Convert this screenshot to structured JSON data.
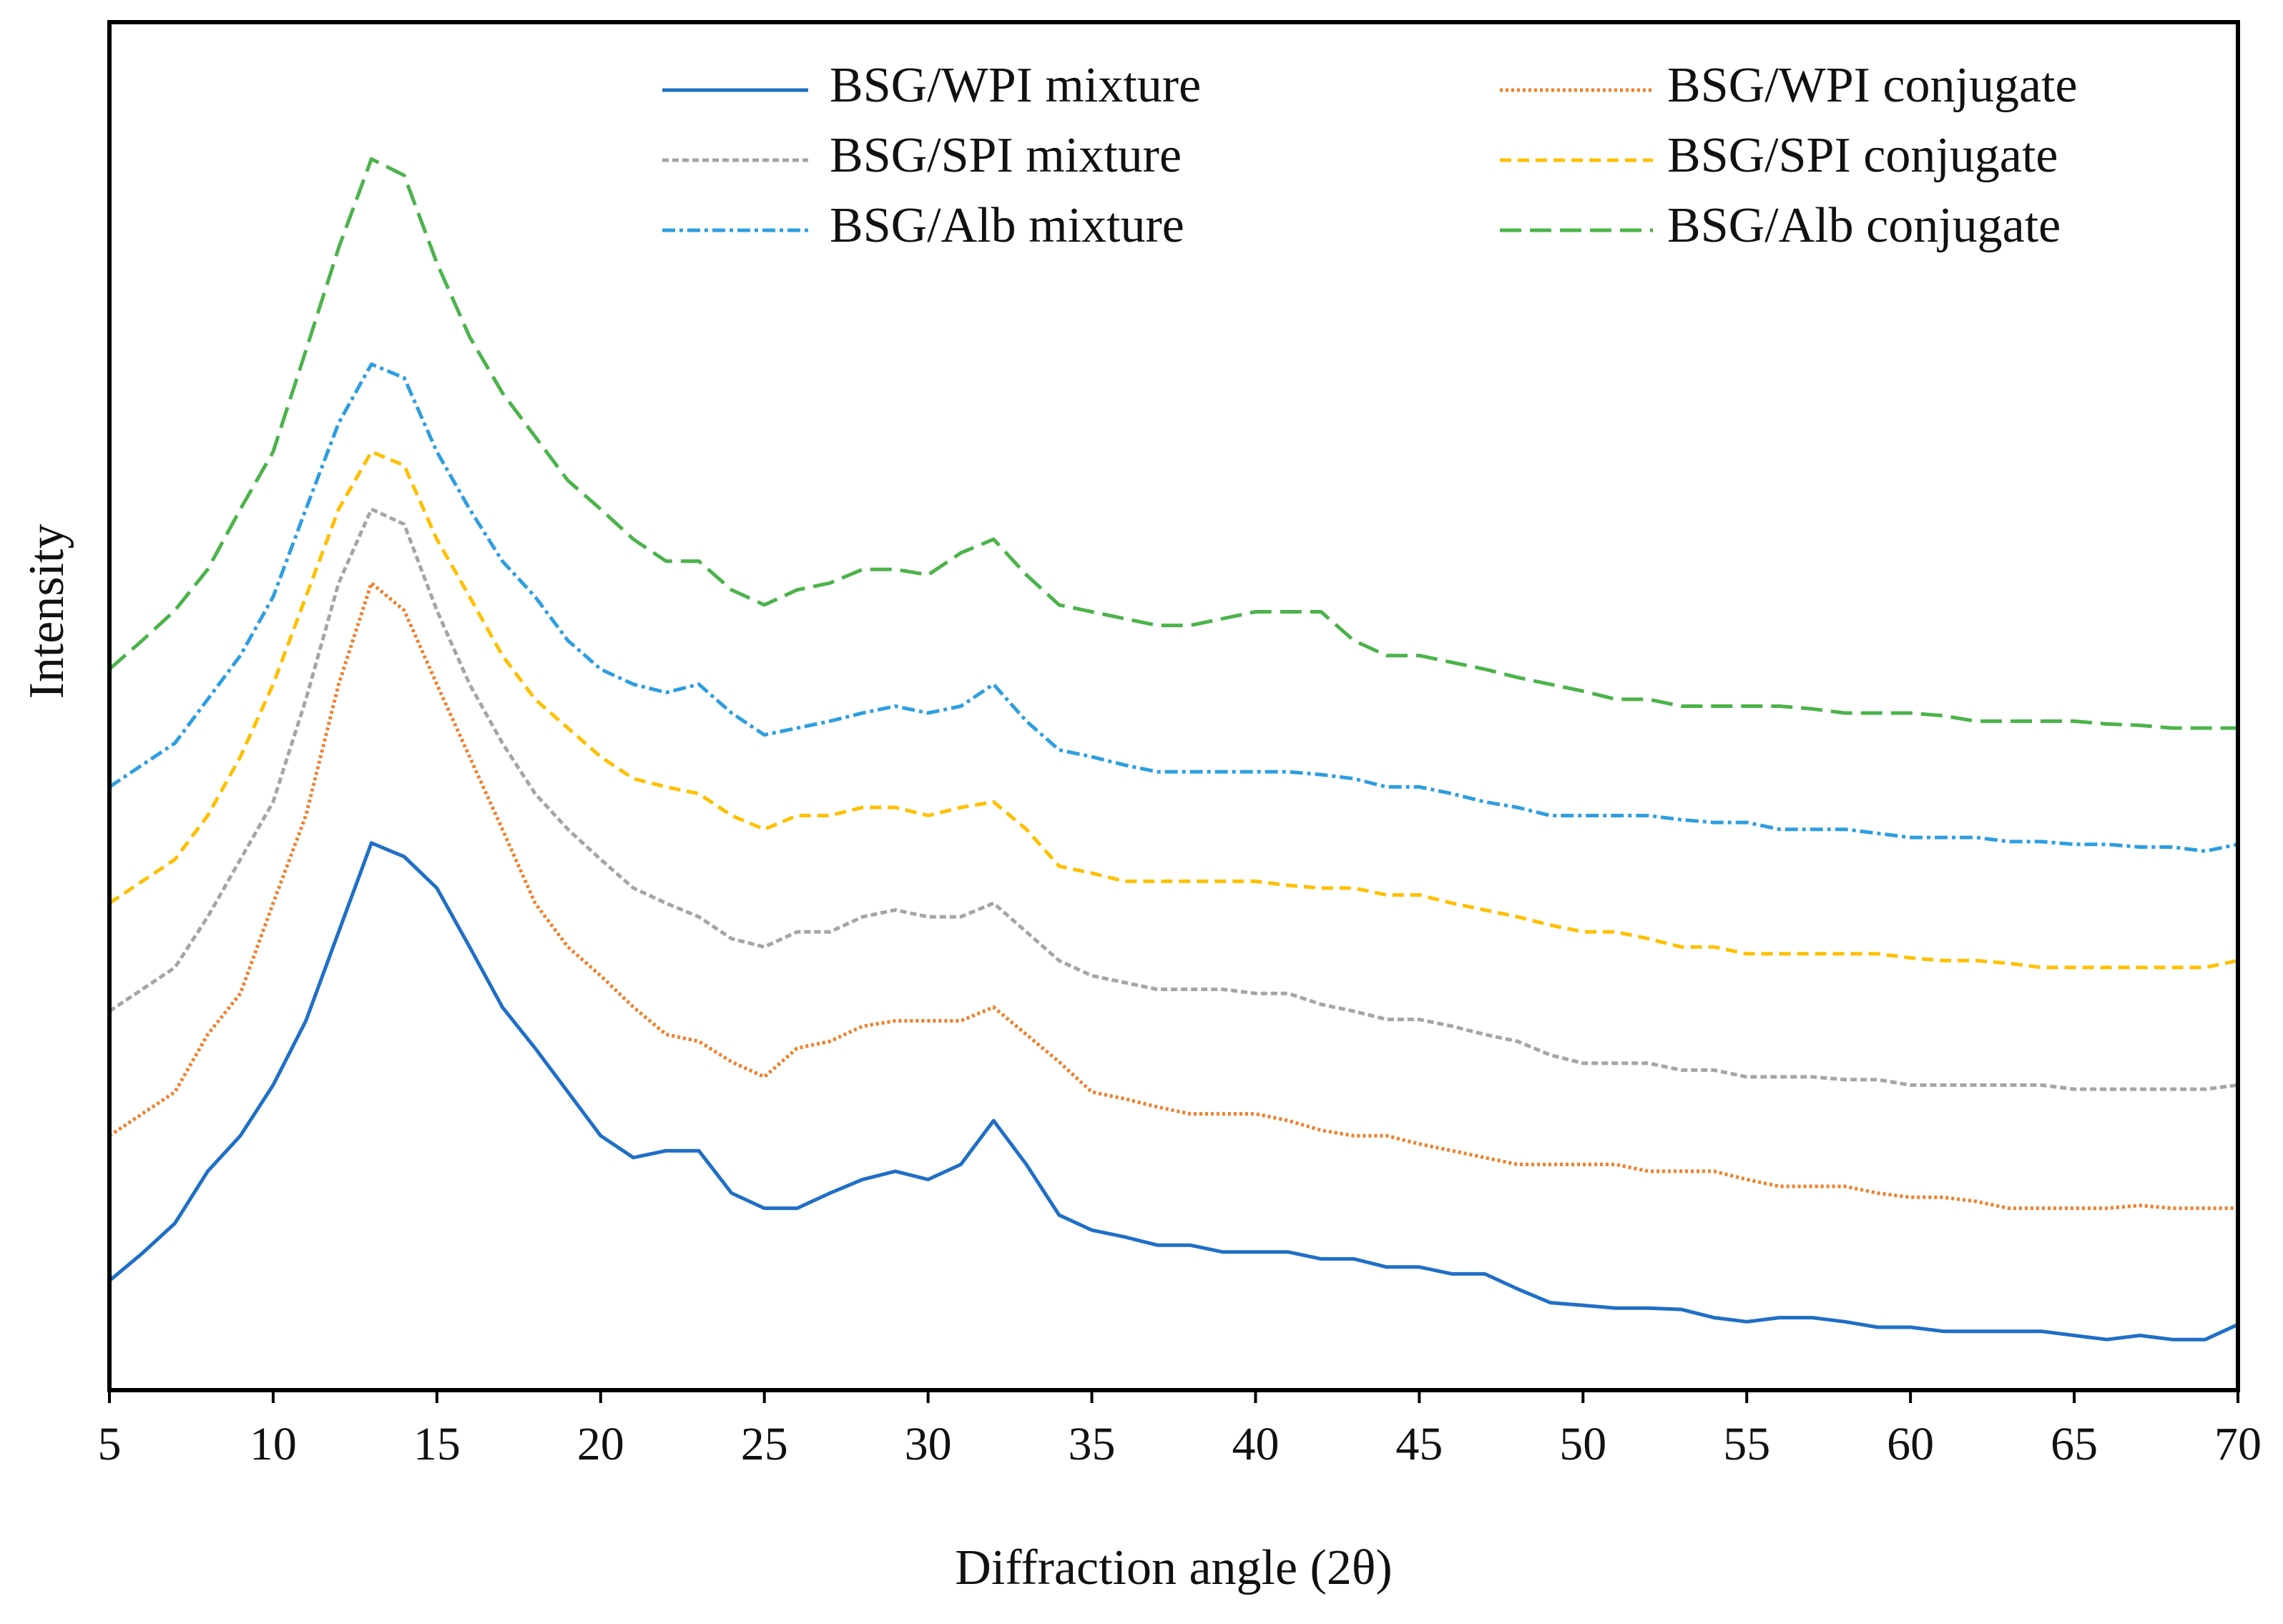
{
  "chart_data": {
    "type": "line",
    "xlabel": "Diffraction angle (2θ)",
    "ylabel": "Intensity",
    "xlim": [
      5,
      70
    ],
    "xticks": [
      5,
      10,
      15,
      20,
      25,
      30,
      35,
      40,
      45,
      50,
      55,
      60,
      65,
      70
    ],
    "ylim": [
      0,
      100
    ],
    "legend": "top-right",
    "x": [
      5,
      6,
      7,
      8,
      9,
      10,
      11,
      12,
      13,
      14,
      15,
      16,
      17,
      18,
      19,
      20,
      21,
      22,
      23,
      24,
      25,
      26,
      27,
      28,
      29,
      30,
      31,
      32,
      33,
      34,
      35,
      36,
      37,
      38,
      39,
      40,
      41,
      42,
      43,
      44,
      45,
      46,
      47,
      48,
      49,
      50,
      51,
      52,
      53,
      54,
      55,
      56,
      57,
      58,
      59,
      60,
      61,
      62,
      63,
      64,
      65,
      66,
      67,
      68,
      69,
      70
    ],
    "series": [
      {
        "name": "BSG/WPI mixture",
        "color": "#1f6fc6",
        "linestyle": "solid",
        "values": [
          8,
          10,
          12.2,
          16,
          18.6,
          22.3,
          27,
          33.5,
          40,
          39,
          36.7,
          32.4,
          28,
          25,
          21.8,
          18.6,
          17,
          17.5,
          17.5,
          14.4,
          13.3,
          13.3,
          14.4,
          15.4,
          16,
          15.4,
          16.5,
          19.7,
          16.5,
          12.8,
          11.7,
          11.2,
          10.6,
          10.6,
          10.1,
          10.1,
          10.1,
          9.6,
          9.6,
          9,
          9,
          8.5,
          8.5,
          7.4,
          6.4,
          6.2,
          6,
          6,
          5.9,
          5.3,
          5,
          5.3,
          5.3,
          5,
          4.6,
          4.6,
          4.3,
          4.3,
          4.3,
          4.3,
          4,
          3.7,
          4,
          3.7,
          3.7,
          4.8
        ]
      },
      {
        "name": "BSG/WPI conjugate",
        "color": "#f07f2a",
        "linestyle": "dotted",
        "values": [
          18.6,
          20.2,
          21.8,
          26,
          29,
          35.6,
          42,
          51.6,
          59,
          57,
          51.6,
          46.3,
          41,
          35.6,
          32.4,
          30.3,
          28,
          26,
          25.5,
          24,
          22.9,
          25,
          25.5,
          26.6,
          27,
          27,
          27,
          28,
          26,
          24,
          21.8,
          21.3,
          20.7,
          20.2,
          20.2,
          20.2,
          19.7,
          19,
          18.6,
          18.6,
          18,
          17.5,
          17,
          16.5,
          16.5,
          16.5,
          16.5,
          16,
          16,
          16,
          15.4,
          14.9,
          14.9,
          14.9,
          14.4,
          14.1,
          14.1,
          13.8,
          13.3,
          13.3,
          13.3,
          13.3,
          13.5,
          13.3,
          13.3,
          13.3
        ]
      },
      {
        "name": "BSG/SPI mixture",
        "color": "#a5a5a5",
        "linestyle": "short-dash",
        "values": [
          27.7,
          29.3,
          30.9,
          34.6,
          38.8,
          43,
          50.5,
          59,
          64.4,
          63.3,
          57,
          51.6,
          47.3,
          43.6,
          41,
          38.8,
          36.7,
          35.6,
          34.6,
          33,
          32.4,
          33.5,
          33.5,
          34.6,
          35.1,
          34.6,
          34.6,
          35.6,
          33.5,
          31.4,
          30.3,
          29.8,
          29.3,
          29.3,
          29.3,
          29,
          29,
          28.2,
          27.7,
          27.1,
          27.1,
          26.6,
          26,
          25.5,
          24.5,
          23.9,
          23.9,
          23.9,
          23.4,
          23.4,
          22.9,
          22.9,
          22.9,
          22.7,
          22.7,
          22.3,
          22.3,
          22.3,
          22.3,
          22.3,
          22,
          22,
          22,
          22,
          22,
          22.3
        ]
      },
      {
        "name": "BSG/SPI conjugate",
        "color": "#ffc000",
        "linestyle": "dash",
        "values": [
          35.6,
          37.2,
          38.8,
          42,
          46.3,
          51.6,
          58,
          64.4,
          68.6,
          67.6,
          62.2,
          58,
          53.7,
          50.5,
          48.4,
          46.3,
          44.7,
          44.1,
          43.6,
          42,
          41,
          42,
          42,
          42.6,
          42.6,
          42,
          42.6,
          43,
          41,
          38.3,
          37.8,
          37.2,
          37.2,
          37.2,
          37.2,
          37.2,
          36.9,
          36.7,
          36.7,
          36.2,
          36.2,
          35.6,
          35.1,
          34.6,
          34,
          33.5,
          33.5,
          33,
          32.4,
          32.4,
          31.9,
          31.9,
          31.9,
          31.9,
          31.9,
          31.6,
          31.4,
          31.4,
          31.2,
          30.9,
          30.9,
          30.9,
          30.9,
          30.9,
          30.9,
          31.4
        ]
      },
      {
        "name": "BSG/Alb mixture",
        "color": "#2e9ee0",
        "linestyle": "dash-dot",
        "values": [
          44.1,
          45.7,
          47.3,
          50.5,
          53.7,
          58,
          64.4,
          70.7,
          75,
          74,
          68.6,
          64.4,
          60.6,
          58,
          54.8,
          52.7,
          51.6,
          51,
          51.6,
          49.5,
          47.9,
          48.4,
          48.9,
          49.5,
          50,
          49.5,
          50,
          51.6,
          48.9,
          46.8,
          46.3,
          45.7,
          45.2,
          45.2,
          45.2,
          45.2,
          45.2,
          45,
          44.7,
          44.1,
          44.1,
          43.6,
          43,
          42.6,
          42,
          42,
          42,
          42,
          41.7,
          41.5,
          41.5,
          41,
          41,
          41,
          40.7,
          40.4,
          40.4,
          40.4,
          40.1,
          40.1,
          39.9,
          39.9,
          39.7,
          39.7,
          39.4,
          39.9
        ]
      },
      {
        "name": "BSG/Alb conjugate",
        "color": "#4bb34a",
        "linestyle": "long-dash",
        "values": [
          52.7,
          54.8,
          57,
          60,
          64.4,
          68.6,
          76,
          83.5,
          90,
          88.8,
          82.4,
          77,
          72.9,
          69.7,
          66.5,
          64.4,
          62.2,
          60.6,
          60.6,
          58.5,
          57.4,
          58.5,
          59,
          60,
          60,
          59.6,
          61.2,
          62.2,
          59.6,
          57.4,
          56.9,
          56.4,
          55.9,
          55.9,
          56.4,
          56.9,
          56.9,
          56.9,
          54.8,
          53.7,
          53.7,
          53.2,
          52.7,
          52.1,
          51.6,
          51.1,
          50.5,
          50.5,
          50,
          50,
          50,
          50,
          49.8,
          49.5,
          49.5,
          49.5,
          49.3,
          48.9,
          48.9,
          48.9,
          48.9,
          48.7,
          48.6,
          48.4,
          48.4,
          48.4
        ]
      }
    ]
  }
}
